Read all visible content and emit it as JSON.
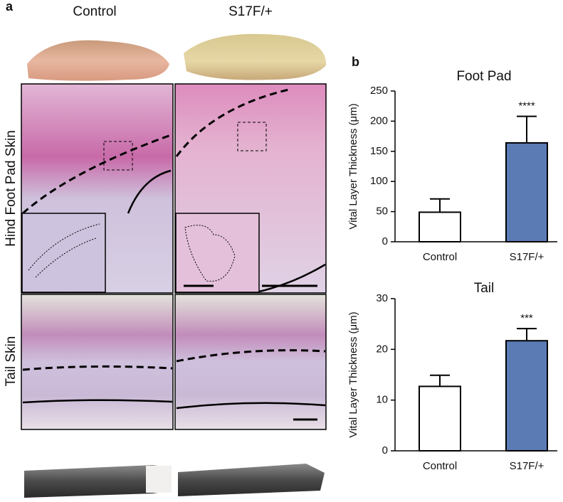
{
  "panel_a": {
    "label": "a",
    "columns": [
      "Control",
      "S17F/+"
    ],
    "rows": [
      "Hind Foot Pad Skin",
      "Tail Skin"
    ]
  },
  "panel_b_label": "b",
  "chart_data": [
    {
      "type": "bar",
      "title": "Foot Pad",
      "y_label": "Vital Layer Thickness (μm)",
      "categories": [
        "Control",
        "S17F/+"
      ],
      "values": [
        49,
        164
      ],
      "errors": [
        22,
        44
      ],
      "colors": [
        "#ffffff",
        "#5b7bb5"
      ],
      "ylim": [
        0,
        250
      ],
      "yticks": [
        0,
        50,
        100,
        150,
        200,
        250
      ],
      "annotations": [
        {
          "text": "****",
          "category": "S17F/+"
        }
      ]
    },
    {
      "type": "bar",
      "title": "Tail",
      "y_label": "Vital Layer Thickness (μm)",
      "categories": [
        "Control",
        "S17F/+"
      ],
      "values": [
        12.7,
        21.7
      ],
      "errors": [
        2.2,
        2.4
      ],
      "colors": [
        "#ffffff",
        "#5b7bb5"
      ],
      "ylim": [
        0,
        30
      ],
      "yticks": [
        0,
        10,
        20,
        30
      ],
      "annotations": [
        {
          "text": "***",
          "category": "S17F/+"
        }
      ]
    }
  ]
}
